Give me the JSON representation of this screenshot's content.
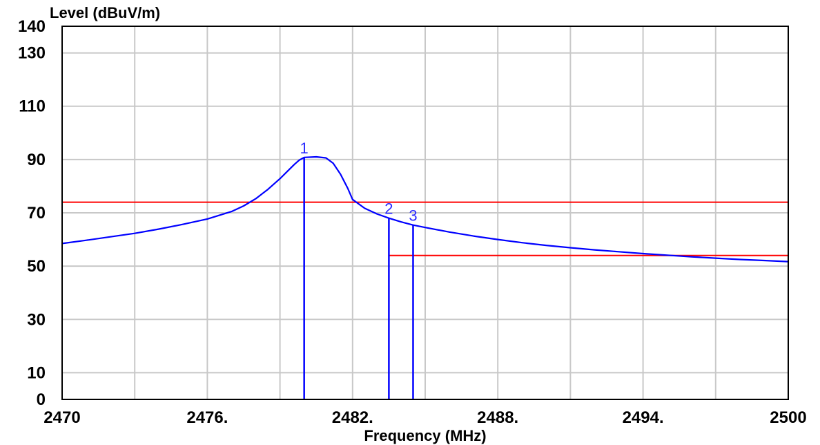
{
  "chart_data": {
    "type": "line",
    "title": "",
    "xlabel": "Frequency (MHz)",
    "ylabel": "Level (dBuV/m)",
    "xlim": [
      2470,
      2500
    ],
    "ylim": [
      0,
      140
    ],
    "x_ticks": [
      2470,
      2476,
      2482,
      2488,
      2494,
      2500
    ],
    "x_tick_labels": [
      "2470",
      "2476.",
      "2482.",
      "2488.",
      "2494.",
      "2500"
    ],
    "y_ticks": [
      0,
      10,
      30,
      50,
      70,
      90,
      110,
      130,
      140
    ],
    "y_tick_labels": [
      "0",
      "10",
      "30",
      "50",
      "70",
      "90",
      "110",
      "130",
      "140"
    ],
    "x_grid": [
      2470,
      2473,
      2476,
      2479,
      2482,
      2485,
      2488,
      2491,
      2494,
      2497,
      2500
    ],
    "y_grid": [
      0,
      10,
      30,
      50,
      70,
      90,
      110,
      130,
      140
    ],
    "grid": true,
    "series": [
      {
        "color": "#0000ff",
        "x": [
          2470,
          2471,
          2472,
          2473,
          2474,
          2475,
          2476,
          2477,
          2477.5,
          2478,
          2478.5,
          2479,
          2479.3,
          2479.6,
          2479.8,
          2480,
          2480.5,
          2480.9,
          2481.2,
          2481.5,
          2481.8,
          2482,
          2482.5,
          2483,
          2483.5,
          2484,
          2484.5,
          2485,
          2486,
          2487,
          2488,
          2489,
          2490,
          2491,
          2492,
          2493,
          2494,
          2495,
          2496,
          2497,
          2498,
          2499,
          2500
        ],
        "values": [
          58.5,
          59.7,
          61,
          62.3,
          63.9,
          65.7,
          67.7,
          70.5,
          72.6,
          75.3,
          78.8,
          82.8,
          85.5,
          88.2,
          89.8,
          90.8,
          91,
          90.6,
          88.6,
          84.5,
          79.2,
          75,
          71.7,
          69.6,
          68,
          66.6,
          65.4,
          64.5,
          62.8,
          61.3,
          60,
          58.8,
          57.8,
          56.9,
          56.1,
          55.4,
          54.7,
          54.1,
          53.5,
          53,
          52.5,
          52.1,
          51.7
        ]
      }
    ],
    "limit_lines": [
      {
        "color": "#ff0000",
        "x": [
          2470,
          2500
        ],
        "value": 74
      },
      {
        "color": "#ff0000",
        "x": [
          2483.5,
          2500
        ],
        "value": 54
      }
    ],
    "markers": [
      {
        "label": "1",
        "x": 2480,
        "value": 90.8,
        "color": "#0000ff"
      },
      {
        "label": "2",
        "x": 2483.5,
        "value": 68,
        "color": "#0000ff"
      },
      {
        "label": "3",
        "x": 2484.5,
        "value": 65.4,
        "color": "#0000ff"
      }
    ]
  }
}
